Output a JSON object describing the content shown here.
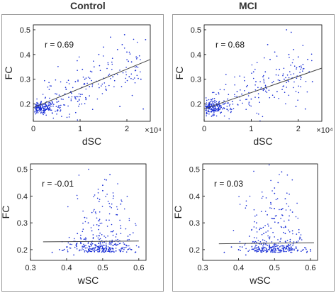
{
  "figure": {
    "column_titles": [
      "Control",
      "MCI"
    ],
    "colors": {
      "points": "#1a2fd6",
      "fit_line": "#444444",
      "axes": "#000000",
      "panel_border": "#9a9a9a"
    }
  },
  "chart_data": [
    {
      "id": "control-dsc",
      "type": "scatter",
      "group": "Control",
      "xlabel": "dSC",
      "ylabel": "FC",
      "x_exponent_label": "×10⁴",
      "x_scale_factor": 10000,
      "xlim": [
        0,
        25000
      ],
      "ylim": [
        0.13,
        0.52
      ],
      "xticks": [
        0,
        10000,
        20000
      ],
      "xtick_labels": [
        "0",
        "1",
        "2"
      ],
      "yticks": [
        0.2,
        0.3,
        0.4,
        0.5
      ],
      "ytick_labels": [
        "0.2",
        "0.3",
        "0.4",
        "0.5"
      ],
      "annotation": "r = 0.69",
      "fit_line": {
        "x": [
          0,
          25000
        ],
        "y": [
          0.185,
          0.38
        ]
      },
      "cloud_seed": 11,
      "points": [
        [
          1500,
          0.2
        ],
        [
          2500,
          0.19
        ],
        [
          800,
          0.17
        ],
        [
          4000,
          0.21
        ],
        [
          5000,
          0.24
        ],
        [
          6000,
          0.22
        ],
        [
          7000,
          0.26
        ],
        [
          8000,
          0.25
        ],
        [
          9000,
          0.29
        ],
        [
          10000,
          0.23
        ],
        [
          11000,
          0.3
        ],
        [
          12000,
          0.27
        ],
        [
          13000,
          0.35
        ],
        [
          14000,
          0.4
        ],
        [
          15000,
          0.43
        ],
        [
          16000,
          0.36
        ],
        [
          17000,
          0.31
        ],
        [
          18000,
          0.42
        ],
        [
          19000,
          0.44
        ],
        [
          20000,
          0.41
        ],
        [
          21000,
          0.37
        ],
        [
          22000,
          0.39
        ],
        [
          23000,
          0.3
        ],
        [
          24000,
          0.46
        ],
        [
          19500,
          0.48
        ],
        [
          16500,
          0.47
        ],
        [
          12500,
          0.33
        ],
        [
          9500,
          0.21
        ],
        [
          3000,
          0.18
        ],
        [
          500,
          0.16
        ],
        [
          18500,
          0.19
        ],
        [
          23500,
          0.18
        ],
        [
          15500,
          0.26
        ],
        [
          10500,
          0.34
        ],
        [
          20500,
          0.31
        ]
      ]
    },
    {
      "id": "mci-dsc",
      "type": "scatter",
      "group": "MCI",
      "xlabel": "dSC",
      "ylabel": "FC",
      "x_exponent_label": "×10⁴",
      "x_scale_factor": 10000,
      "xlim": [
        0,
        25000
      ],
      "ylim": [
        0.13,
        0.52
      ],
      "xticks": [
        0,
        10000,
        20000
      ],
      "xtick_labels": [
        "0",
        "1",
        "2"
      ],
      "yticks": [
        0.2,
        0.3,
        0.4,
        0.5
      ],
      "ytick_labels": [
        "0.2",
        "0.3",
        "0.4",
        "0.5"
      ],
      "annotation": "r = 0.68",
      "fit_line": {
        "x": [
          0,
          25000
        ],
        "y": [
          0.18,
          0.345
        ]
      },
      "cloud_seed": 23,
      "points": [
        [
          1500,
          0.19
        ],
        [
          2500,
          0.18
        ],
        [
          900,
          0.17
        ],
        [
          4000,
          0.2
        ],
        [
          5000,
          0.22
        ],
        [
          6000,
          0.21
        ],
        [
          7000,
          0.25
        ],
        [
          8000,
          0.24
        ],
        [
          9000,
          0.27
        ],
        [
          10000,
          0.22
        ],
        [
          11000,
          0.29
        ],
        [
          12000,
          0.26
        ],
        [
          13000,
          0.33
        ],
        [
          14000,
          0.38
        ],
        [
          15000,
          0.41
        ],
        [
          16000,
          0.34
        ],
        [
          17000,
          0.3
        ],
        [
          18000,
          0.4
        ],
        [
          19000,
          0.42
        ],
        [
          20000,
          0.39
        ],
        [
          21000,
          0.36
        ],
        [
          22000,
          0.38
        ],
        [
          23000,
          0.29
        ],
        [
          17500,
          0.5
        ],
        [
          18500,
          0.49
        ],
        [
          13500,
          0.44
        ],
        [
          12500,
          0.31
        ],
        [
          9500,
          0.2
        ],
        [
          3000,
          0.18
        ],
        [
          500,
          0.16
        ],
        [
          19500,
          0.19
        ],
        [
          21500,
          0.18
        ],
        [
          15500,
          0.25
        ],
        [
          10500,
          0.33
        ],
        [
          20500,
          0.3
        ]
      ]
    },
    {
      "id": "control-wsc",
      "type": "scatter",
      "group": "Control",
      "xlabel": "wSC",
      "ylabel": "FC",
      "xlim": [
        0.3,
        0.62
      ],
      "ylim": [
        0.16,
        0.52
      ],
      "xticks": [
        0.3,
        0.4,
        0.5,
        0.6
      ],
      "xtick_labels": [
        "0.3",
        "0.4",
        "0.5",
        "0.6"
      ],
      "yticks": [
        0.2,
        0.3,
        0.4,
        0.5
      ],
      "ytick_labels": [
        "0.2",
        "0.3",
        "0.4",
        "0.5"
      ],
      "annotation": "r = -0.01",
      "fit_line": {
        "x": [
          0.335,
          0.6
        ],
        "y": [
          0.229,
          0.232
        ]
      },
      "cloud_seed": 37,
      "points": [
        [
          0.36,
          0.19
        ],
        [
          0.38,
          0.2
        ],
        [
          0.4,
          0.21
        ],
        [
          0.42,
          0.18
        ],
        [
          0.44,
          0.24
        ],
        [
          0.46,
          0.3
        ],
        [
          0.47,
          0.27
        ],
        [
          0.48,
          0.34
        ],
        [
          0.49,
          0.38
        ],
        [
          0.5,
          0.42
        ],
        [
          0.51,
          0.46
        ],
        [
          0.52,
          0.48
        ],
        [
          0.5,
          0.44
        ],
        [
          0.53,
          0.4
        ],
        [
          0.54,
          0.33
        ],
        [
          0.55,
          0.28
        ],
        [
          0.56,
          0.22
        ],
        [
          0.57,
          0.25
        ],
        [
          0.58,
          0.2
        ],
        [
          0.59,
          0.19
        ],
        [
          0.6,
          0.21
        ],
        [
          0.45,
          0.32
        ],
        [
          0.52,
          0.36
        ],
        [
          0.49,
          0.29
        ],
        [
          0.51,
          0.31
        ],
        [
          0.53,
          0.27
        ],
        [
          0.47,
          0.23
        ],
        [
          0.55,
          0.37
        ],
        [
          0.43,
          0.26
        ],
        [
          0.41,
          0.22
        ]
      ]
    },
    {
      "id": "mci-wsc",
      "type": "scatter",
      "group": "MCI",
      "xlabel": "wSC",
      "ylabel": "FC",
      "xlim": [
        0.3,
        0.62
      ],
      "ylim": [
        0.16,
        0.52
      ],
      "xticks": [
        0.3,
        0.4,
        0.5,
        0.6
      ],
      "xtick_labels": [
        "0.3",
        "0.4",
        "0.5",
        "0.6"
      ],
      "yticks": [
        0.2,
        0.3,
        0.4,
        0.5
      ],
      "ytick_labels": [
        "0.2",
        "0.3",
        "0.4",
        "0.5"
      ],
      "annotation": "r = 0.03",
      "fit_line": {
        "x": [
          0.345,
          0.61
        ],
        "y": [
          0.222,
          0.226
        ]
      },
      "cloud_seed": 53,
      "points": [
        [
          0.36,
          0.19
        ],
        [
          0.38,
          0.21
        ],
        [
          0.4,
          0.2
        ],
        [
          0.42,
          0.18
        ],
        [
          0.44,
          0.23
        ],
        [
          0.46,
          0.28
        ],
        [
          0.47,
          0.26
        ],
        [
          0.48,
          0.33
        ],
        [
          0.49,
          0.37
        ],
        [
          0.5,
          0.41
        ],
        [
          0.51,
          0.45
        ],
        [
          0.52,
          0.49
        ],
        [
          0.5,
          0.43
        ],
        [
          0.53,
          0.39
        ],
        [
          0.54,
          0.31
        ],
        [
          0.55,
          0.27
        ],
        [
          0.56,
          0.21
        ],
        [
          0.57,
          0.24
        ],
        [
          0.58,
          0.2
        ],
        [
          0.59,
          0.19
        ],
        [
          0.6,
          0.2
        ],
        [
          0.45,
          0.3
        ],
        [
          0.52,
          0.35
        ],
        [
          0.49,
          0.28
        ],
        [
          0.51,
          0.3
        ],
        [
          0.53,
          0.26
        ],
        [
          0.47,
          0.22
        ],
        [
          0.55,
          0.34
        ],
        [
          0.43,
          0.25
        ],
        [
          0.41,
          0.21
        ]
      ]
    }
  ]
}
